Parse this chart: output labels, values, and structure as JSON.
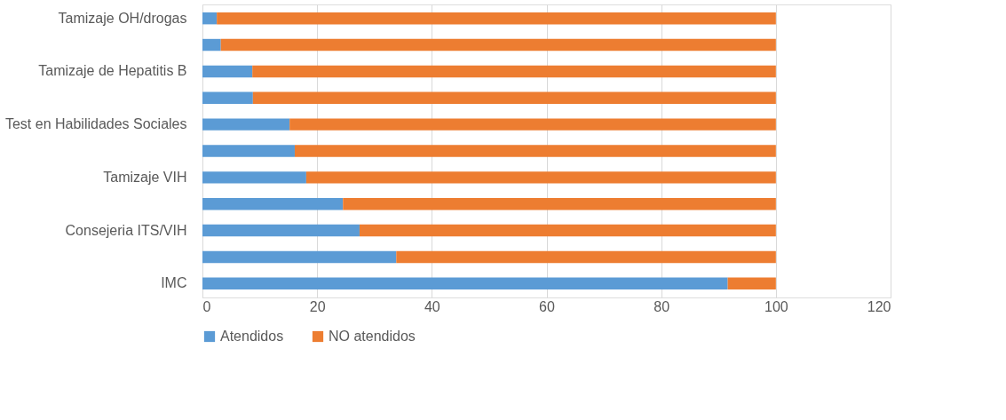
{
  "chart_data": {
    "type": "bar",
    "orientation": "horizontal",
    "stacked": true,
    "categories": [
      "Tamizaje OH/drogas",
      null,
      "Tamizaje de Hepatitis B",
      null,
      "Test en Habilidades Sociales",
      null,
      "Tamizaje VIH",
      null,
      "Consejeria ITS/VIH",
      null,
      "IMC"
    ],
    "series": [
      {
        "name": "Atendidos",
        "color": "#5b9bd5",
        "values": [
          2.5,
          3.2,
          8.7,
          8.8,
          15.2,
          16.1,
          18.1,
          24.5,
          27.4,
          33.8,
          91.6
        ]
      },
      {
        "name": "NO atendidos",
        "color": "#ed7d31",
        "values": [
          97.5,
          96.8,
          91.3,
          91.2,
          84.8,
          83.9,
          81.9,
          75.5,
          72.6,
          66.2,
          8.4
        ]
      }
    ],
    "xlim": [
      0,
      120
    ],
    "xticks": [
      0,
      20,
      40,
      60,
      80,
      100,
      120
    ],
    "grid": "x",
    "legend": "bottom"
  }
}
